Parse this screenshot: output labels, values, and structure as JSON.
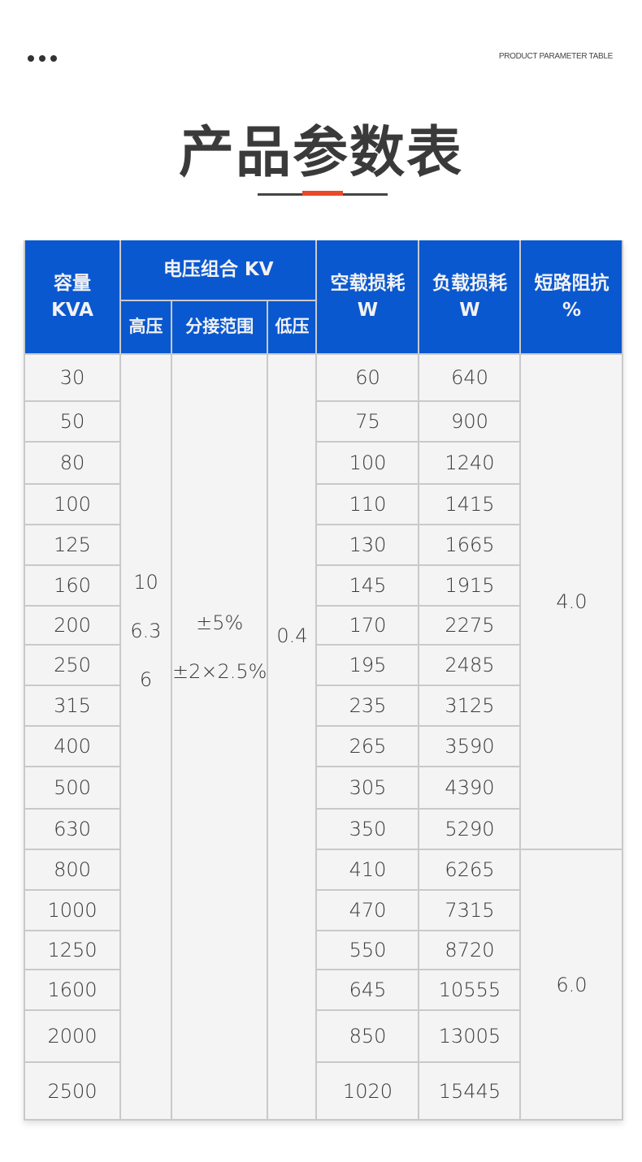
{
  "header": {
    "english_label": "PRODUCT PARAMETER TABLE",
    "title": "产品参数表",
    "accent_color": "#e84a2a"
  },
  "table": {
    "header_color": "#0a58d0",
    "columns": {
      "capacity": [
        "容量",
        "KVA"
      ],
      "voltage_group": "电压组合 KV",
      "high_voltage": "高压",
      "tap_range": "分接范围",
      "low_voltage": "低压",
      "no_load_loss": [
        "空载损耗",
        "W"
      ],
      "load_loss": [
        "负载损耗",
        "W"
      ],
      "impedance": [
        "短路阻抗",
        "%"
      ]
    },
    "high_voltage_values": [
      "10",
      "6.3",
      "6"
    ],
    "tap_range_values": [
      "±5%",
      "±2×2.5%"
    ],
    "low_voltage_value": "0.4",
    "impedance_groups": [
      "4.0",
      "6.0"
    ],
    "rows": [
      {
        "capacity": "30",
        "no_load": "60",
        "load": "640"
      },
      {
        "capacity": "50",
        "no_load": "75",
        "load": "900"
      },
      {
        "capacity": "80",
        "no_load": "100",
        "load": "1240"
      },
      {
        "capacity": "100",
        "no_load": "110",
        "load": "1415"
      },
      {
        "capacity": "125",
        "no_load": "130",
        "load": "1665"
      },
      {
        "capacity": "160",
        "no_load": "145",
        "load": "1915"
      },
      {
        "capacity": "200",
        "no_load": "170",
        "load": "2275"
      },
      {
        "capacity": "250",
        "no_load": "195",
        "load": "2485"
      },
      {
        "capacity": "315",
        "no_load": "235",
        "load": "3125"
      },
      {
        "capacity": "400",
        "no_load": "265",
        "load": "3590"
      },
      {
        "capacity": "500",
        "no_load": "305",
        "load": "4390"
      },
      {
        "capacity": "630",
        "no_load": "350",
        "load": "5290"
      },
      {
        "capacity": "800",
        "no_load": "410",
        "load": "6265"
      },
      {
        "capacity": "1000",
        "no_load": "470",
        "load": "7315"
      },
      {
        "capacity": "1250",
        "no_load": "550",
        "load": "8720"
      },
      {
        "capacity": "1600",
        "no_load": "645",
        "load": "10555"
      },
      {
        "capacity": "2000",
        "no_load": "850",
        "load": "13005"
      },
      {
        "capacity": "2500",
        "no_load": "1020",
        "load": "15445"
      }
    ]
  }
}
